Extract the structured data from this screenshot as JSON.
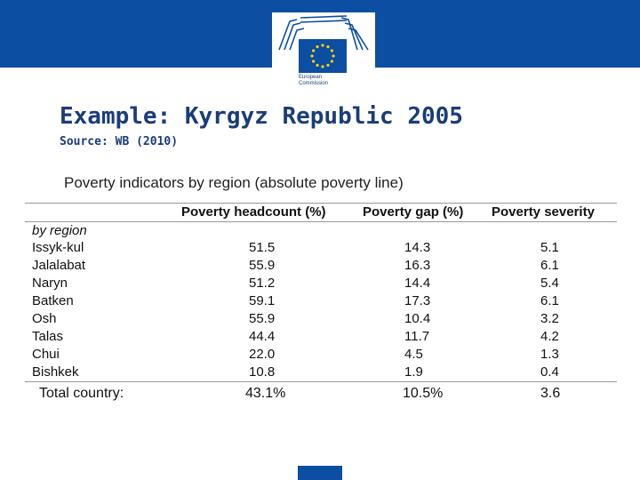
{
  "header": {
    "logo_text_line1": "European",
    "logo_text_line2": "Commission",
    "brand_color": "#0b4ea2"
  },
  "slide": {
    "title": "Example: Kyrgyz Republic 2005",
    "source": "Source: WB (2010)",
    "caption": "Poverty indicators by region (absolute poverty line)"
  },
  "table": {
    "row_header_label": "by region",
    "columns": [
      "Poverty headcount (%)",
      "Poverty gap (%)",
      "Poverty severity"
    ],
    "rows": [
      {
        "region": "Issyk-kul",
        "headcount": "51.5",
        "gap": "14.3",
        "severity": "5.1"
      },
      {
        "region": "Jalalabat",
        "headcount": "55.9",
        "gap": "16.3",
        "severity": "6.1"
      },
      {
        "region": "Naryn",
        "headcount": "51.2",
        "gap": "14.4",
        "severity": "5.4"
      },
      {
        "region": "Batken",
        "headcount": "59.1",
        "gap": "17.3",
        "severity": "6.1"
      },
      {
        "region": "Osh",
        "headcount": "55.9",
        "gap": "10.4",
        "severity": "3.2"
      },
      {
        "region": "Talas",
        "headcount": "44.4",
        "gap": "11.7",
        "severity": "4.2"
      },
      {
        "region": "Chui",
        "headcount": "22.0",
        "gap": "4.5",
        "severity": "1.3"
      },
      {
        "region": "Bishkek",
        "headcount": "10.8",
        "gap": "1.9",
        "severity": "0.4"
      }
    ],
    "total": {
      "label": "Total country:",
      "headcount": "43.1%",
      "gap": "10.5%",
      "severity": "3.6"
    }
  }
}
